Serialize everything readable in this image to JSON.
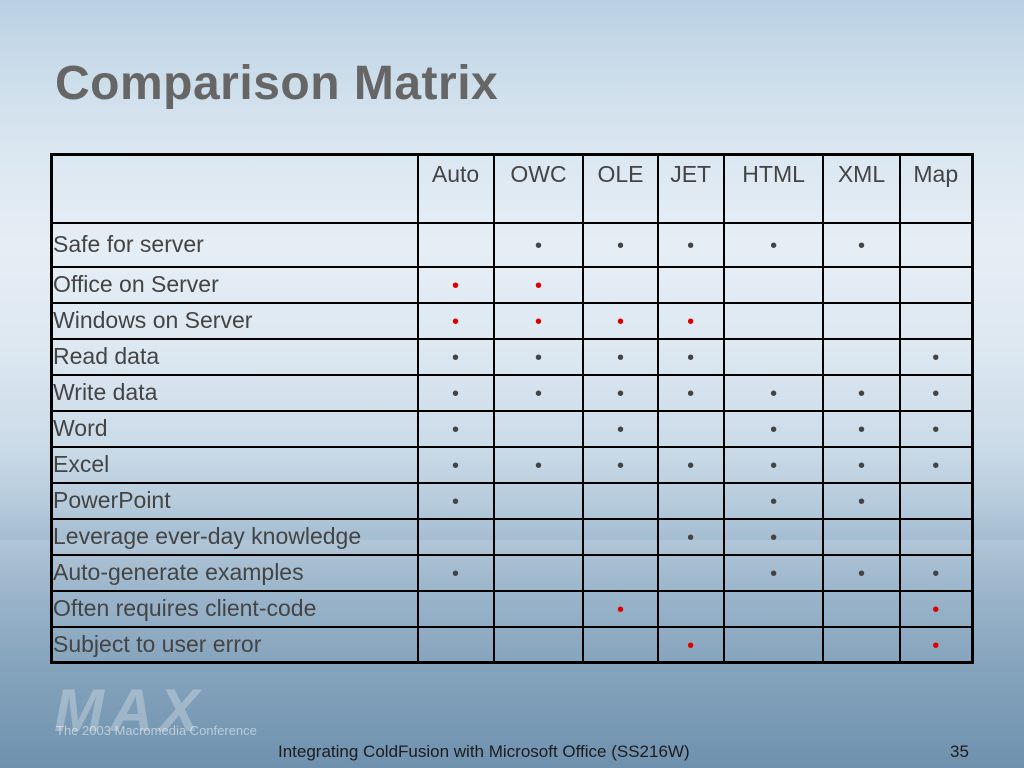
{
  "slide": {
    "title": "Comparison Matrix",
    "footer": "Integrating ColdFusion with Microsoft Office (SS216W)",
    "page_number": "35",
    "watermark": "MAX",
    "watermark_sub": "The 2003 Macromedia Conference"
  },
  "colors": {
    "black_dot": "#444444",
    "red_dot": "#e00000"
  },
  "matrix": {
    "columns": [
      "Auto",
      "OWC",
      "OLE",
      "JET",
      "HTML",
      "XML",
      "Map"
    ],
    "rows": [
      {
        "label": "Safe for server",
        "cells": [
          "",
          "b",
          "b",
          "b",
          "b",
          "b",
          ""
        ]
      },
      {
        "label": "Office on Server",
        "cells": [
          "r",
          "r",
          "",
          "",
          "",
          "",
          ""
        ]
      },
      {
        "label": "Windows on Server",
        "cells": [
          "r",
          "r",
          "r",
          "r",
          "",
          "",
          ""
        ]
      },
      {
        "label": "Read data",
        "cells": [
          "b",
          "b",
          "b",
          "b",
          "",
          "",
          "b"
        ]
      },
      {
        "label": "Write data",
        "cells": [
          "b",
          "b",
          "b",
          "b",
          "b",
          "b",
          "b"
        ]
      },
      {
        "label": "Word",
        "cells": [
          "b",
          "",
          "b",
          "",
          "b",
          "b",
          "b"
        ]
      },
      {
        "label": "Excel",
        "cells": [
          "b",
          "b",
          "b",
          "b",
          "b",
          "b",
          "b"
        ]
      },
      {
        "label": "PowerPoint",
        "cells": [
          "b",
          "",
          "",
          "",
          "b",
          "b",
          ""
        ]
      },
      {
        "label": "Leverage ever-day knowledge",
        "cells": [
          "",
          "",
          "",
          "b",
          "b",
          "",
          ""
        ]
      },
      {
        "label": "Auto-generate examples",
        "cells": [
          "b",
          "",
          "",
          "",
          "b",
          "b",
          "b"
        ]
      },
      {
        "label": "Often requires client-code",
        "cells": [
          "",
          "",
          "r",
          "",
          "",
          "",
          "r"
        ]
      },
      {
        "label": "Subject to user error",
        "cells": [
          "",
          "",
          "",
          "r",
          "",
          "",
          "r"
        ]
      }
    ]
  }
}
